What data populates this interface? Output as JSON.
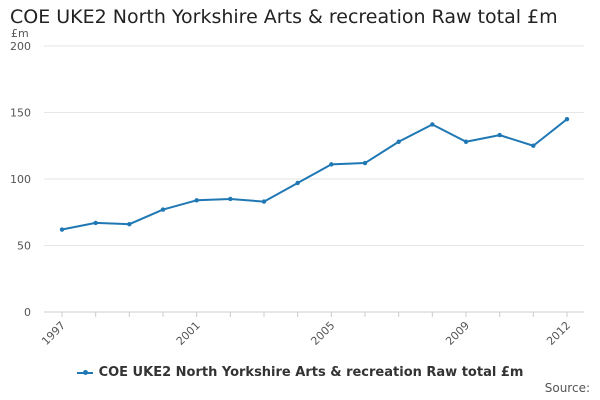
{
  "title": "COE UKE2 North Yorkshire Arts & recreation Raw total £m",
  "source_label": "Source:",
  "colors": {
    "series": "#1f78b4",
    "grid": "#e6e6e6",
    "axis": "#cccccc"
  },
  "chart_data": {
    "type": "line",
    "title": "COE UKE2 North Yorkshire Arts & recreation Raw total £m",
    "ylabel": "£m",
    "xlabel": "",
    "ylim": [
      0,
      200
    ],
    "yticks": [
      0,
      50,
      100,
      150,
      200
    ],
    "xticks": [
      1997,
      2001,
      2005,
      2009,
      2012
    ],
    "xlim": [
      1997,
      2012
    ],
    "grid": true,
    "legend_position": "bottom",
    "x": [
      1997,
      1998,
      1999,
      2000,
      2001,
      2002,
      2003,
      2004,
      2005,
      2006,
      2007,
      2008,
      2009,
      2010,
      2011,
      2012
    ],
    "series": [
      {
        "name": "COE UKE2 North Yorkshire Arts & recreation Raw total £m",
        "values": [
          62,
          67,
          66,
          77,
          84,
          85,
          83,
          97,
          111,
          112,
          128,
          141,
          128,
          133,
          125,
          145
        ]
      }
    ]
  }
}
